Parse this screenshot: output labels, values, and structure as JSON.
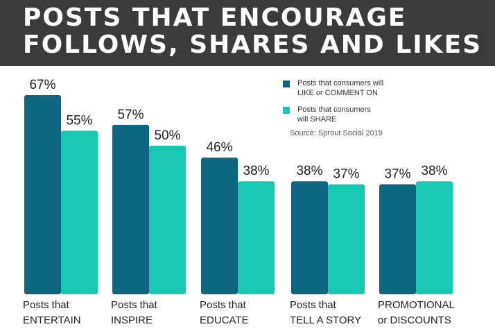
{
  "header": {
    "title_line1": "POSTS THAT ENCOURAGE",
    "title_line2": "FOLLOWS, SHARES AND LIKES"
  },
  "legend": {
    "items": [
      {
        "line1": "Posts that consumers will",
        "line2": "LIKE or COMMENT ON",
        "color": "#0f6680"
      },
      {
        "line1": "Posts that consumers",
        "line2": "will SHARE",
        "color": "#17c9b3"
      }
    ]
  },
  "source": "Source: Sprout Social 2019",
  "chart_data": {
    "type": "bar",
    "categories": [
      [
        "Posts that",
        "ENTERTAIN"
      ],
      [
        "Posts that",
        "INSPIRE"
      ],
      [
        "Posts that",
        "EDUCATE"
      ],
      [
        "Posts that",
        "TELL A STORY"
      ],
      [
        "PROMOTIONAL",
        "or DISCOUNTS"
      ]
    ],
    "series": [
      {
        "name": "Posts that consumers will LIKE or COMMENT ON",
        "values": [
          67,
          57,
          46,
          38,
          37
        ],
        "labels": [
          "67%",
          "57%",
          "46%",
          "38%",
          "37%"
        ],
        "color": "#0f6680"
      },
      {
        "name": "Posts that consumers will SHARE",
        "values": [
          55,
          50,
          38,
          37,
          38
        ],
        "labels": [
          "55%",
          "50%",
          "38%",
          "37%",
          "38%"
        ],
        "color": "#17c9b3"
      }
    ],
    "ylim": [
      0,
      67
    ],
    "grid": false,
    "legend_position": "top-right"
  }
}
